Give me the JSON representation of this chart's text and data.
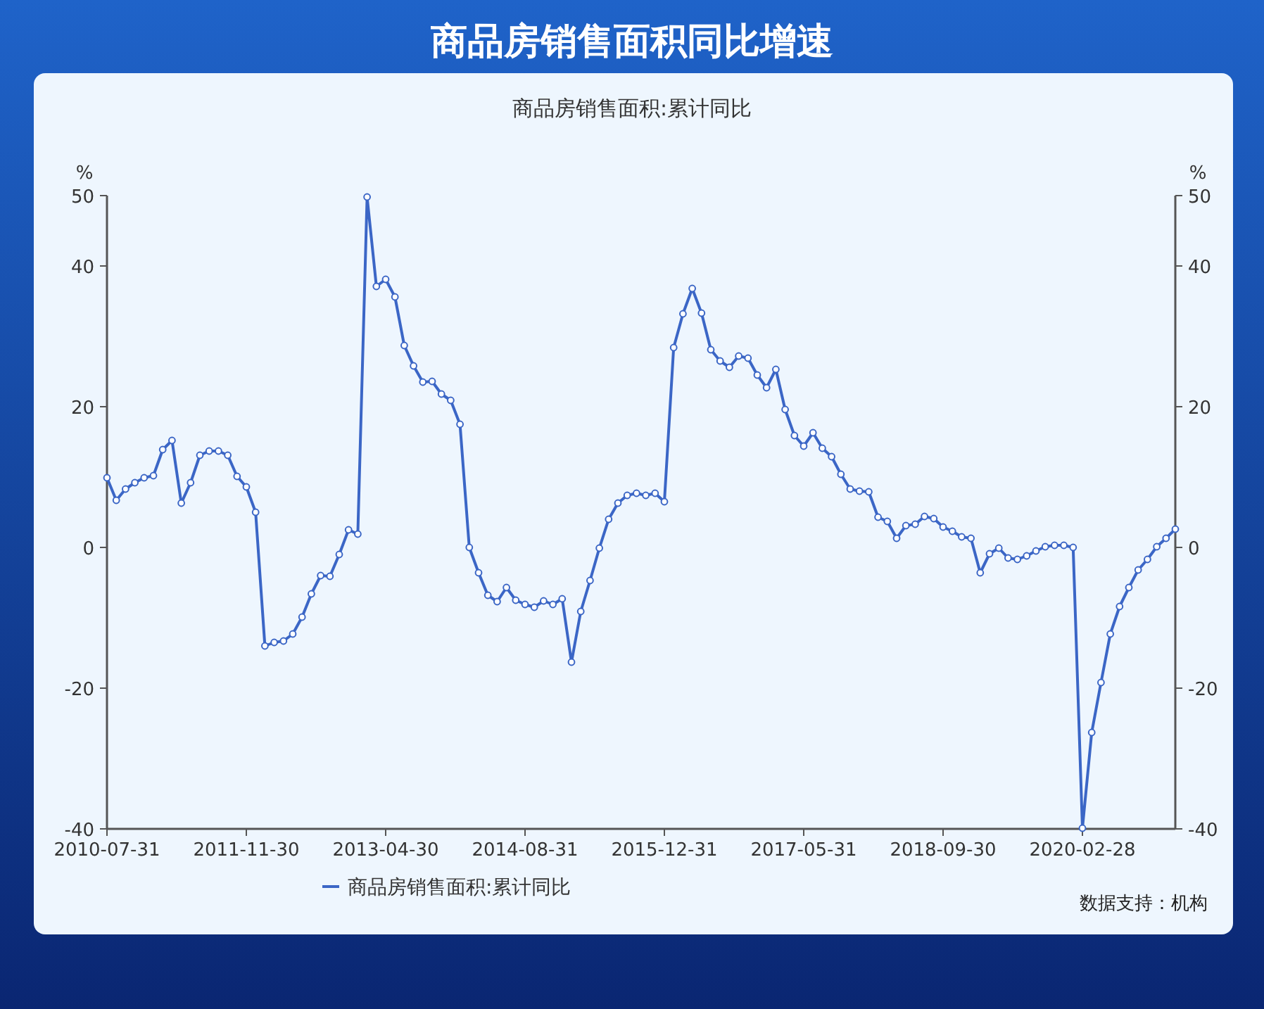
{
  "chart_data": {
    "type": "line",
    "title": "商品房销售面积同比增速",
    "subtitle": "商品房销售面积:累计同比",
    "ylabel": "%",
    "y2label": "%",
    "categories": [
      "2010-07-31",
      null,
      null,
      null,
      null,
      null,
      null,
      null,
      null,
      null,
      null,
      null,
      null,
      null,
      null,
      "2011-11-30",
      null,
      null,
      null,
      null,
      null,
      null,
      null,
      null,
      null,
      null,
      null,
      null,
      null,
      null,
      "2013-04-30",
      null,
      null,
      null,
      null,
      null,
      null,
      null,
      null,
      null,
      null,
      null,
      null,
      null,
      null,
      "2014-08-31",
      null,
      null,
      null,
      null,
      null,
      null,
      null,
      null,
      null,
      null,
      null,
      null,
      null,
      null,
      "2015-12-31",
      null,
      null,
      null,
      null,
      null,
      null,
      null,
      null,
      null,
      null,
      null,
      null,
      null,
      null,
      "2017-05-31",
      null,
      null,
      null,
      null,
      null,
      null,
      null,
      null,
      null,
      null,
      null,
      null,
      null,
      null,
      "2018-09-30",
      null,
      null,
      null,
      null,
      null,
      null,
      null,
      null,
      null,
      null,
      null,
      null,
      null,
      null,
      "2020-02-28",
      null,
      null,
      null,
      null,
      null,
      null,
      null,
      null,
      null,
      null
    ],
    "series": [
      {
        "name": "商品房销售面积:累计同比",
        "color": "#3b66c6",
        "values": [
          9.9,
          6.7,
          8.3,
          9.2,
          9.9,
          10.2,
          13.9,
          15.2,
          6.3,
          9.2,
          13.1,
          13.7,
          13.7,
          13.1,
          10.1,
          8.6,
          5.0,
          -14.0,
          -13.5,
          -13.3,
          -12.3,
          -9.9,
          -6.6,
          -4.0,
          -4.1,
          -1.0,
          2.5,
          1.9,
          49.8,
          37.1,
          38.1,
          35.6,
          28.7,
          25.8,
          23.5,
          23.6,
          21.8,
          20.9,
          17.5,
          0.0,
          -3.6,
          -6.8,
          -7.7,
          -5.7,
          -7.5,
          -8.1,
          -8.5,
          -7.6,
          -8.1,
          -7.3,
          -16.3,
          -9.1,
          -4.7,
          -0.1,
          4.0,
          6.3,
          7.4,
          7.7,
          7.4,
          7.7,
          6.5,
          28.4,
          33.2,
          36.8,
          33.3,
          28.1,
          26.5,
          25.6,
          27.2,
          26.9,
          24.5,
          22.7,
          25.3,
          19.6,
          15.9,
          14.4,
          16.3,
          14.1,
          12.9,
          10.4,
          8.3,
          8.0,
          7.9,
          4.3,
          3.7,
          1.3,
          3.1,
          3.3,
          4.4,
          4.1,
          2.9,
          2.3,
          1.5,
          1.3,
          -3.6,
          -0.9,
          -0.1,
          -1.5,
          -1.7,
          -1.2,
          -0.5,
          0.1,
          0.3,
          0.3,
          0.0,
          -39.9,
          -26.3,
          -19.2,
          -12.3,
          -8.4,
          -5.7,
          -3.2,
          -1.7,
          0.1,
          1.3,
          2.6
        ]
      }
    ],
    "ylim": [
      -40,
      50
    ],
    "yticks": [
      -40,
      -20,
      0,
      20,
      40,
      50
    ],
    "y2lim": [
      -40,
      50
    ],
    "y2ticks": [
      -40,
      -20,
      0,
      20,
      40,
      50
    ],
    "grid": false,
    "legend": "bottom",
    "marker": "circle",
    "annotations": [
      "数据支持：机构"
    ]
  }
}
